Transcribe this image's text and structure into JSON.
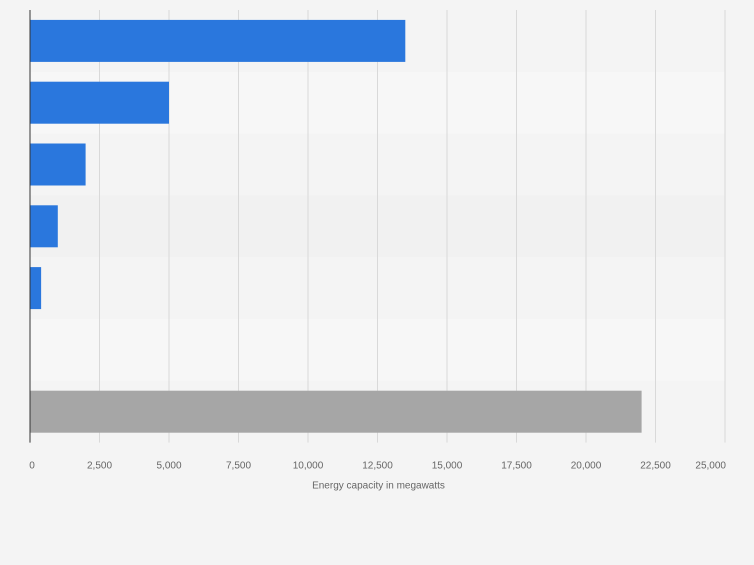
{
  "chart_data": {
    "type": "bar",
    "orientation": "horizontal",
    "categories": [
      "",
      "",
      "",
      "",
      "",
      "",
      ""
    ],
    "values": [
      13500,
      5000,
      2000,
      1000,
      400,
      0,
      22000
    ],
    "bar_colors": [
      "#2a77dd",
      "#2a77dd",
      "#2a77dd",
      "#2a77dd",
      "#2a77dd",
      "#2a77dd",
      "#a6a6a6"
    ],
    "xlim": [
      0,
      25000
    ],
    "xticks": [
      0,
      2500,
      5000,
      7500,
      10000,
      12500,
      15000,
      17500,
      20000,
      22500,
      25000
    ],
    "xtick_labels": [
      "0",
      "2,500",
      "5,000",
      "7,500",
      "10,000",
      "12,500",
      "15,000",
      "17,500",
      "20,000",
      "22,500",
      "25,000"
    ],
    "xlabel": "Energy capacity in megawatts",
    "ylabel": "",
    "title": "",
    "grid": "vertical",
    "legend": "none",
    "colors": {
      "bar": "#2a77dd",
      "total_bar": "#a6a6a6",
      "page_background": "#f4f4f4",
      "band_light": "#f7f7f7",
      "band_dark": "#f1f1f1",
      "grid": "#d9d9d9",
      "axis": "#333333",
      "tick_text": "#666666"
    }
  }
}
